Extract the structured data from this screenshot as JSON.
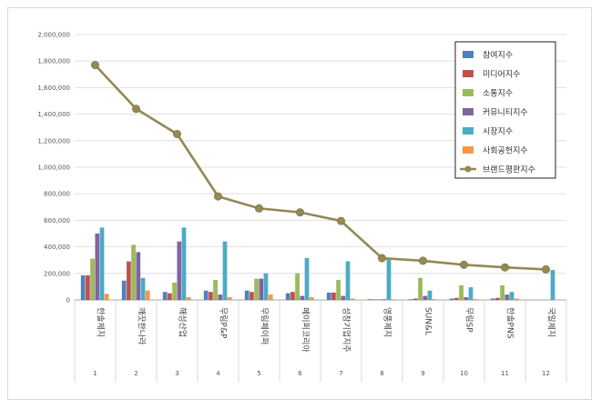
{
  "chart_data": {
    "type": "bar",
    "title": "",
    "xlabel": "",
    "ylabel": "",
    "ylim": [
      0,
      2000000
    ],
    "yticks": [
      0,
      200000,
      400000,
      600000,
      800000,
      1000000,
      1200000,
      1400000,
      1600000,
      1800000,
      2000000
    ],
    "ytick_labels": [
      "0",
      "200,000",
      "400,000",
      "600,000",
      "800,000",
      "1,000,000",
      "1,200,000",
      "1,400,000",
      "1,600,000",
      "1,800,000",
      "2,000,000"
    ],
    "grid": true,
    "legend_position": "top-right",
    "categories": [
      "한솔제지",
      "깨끗한나라",
      "해성산업",
      "무림P&P",
      "무림페이퍼",
      "페이퍼코리아",
      "성창기업지주",
      "영풍제지",
      "SUN&L",
      "무림SP",
      "한솔PNS",
      "국일제지"
    ],
    "category_numbers": [
      "1",
      "2",
      "3",
      "4",
      "5",
      "6",
      "7",
      "8",
      "9",
      "10",
      "11",
      "12"
    ],
    "series": [
      {
        "name": "참여지수",
        "type": "bar",
        "color": "#4f81bd",
        "values": [
          185000,
          145000,
          60000,
          70000,
          70000,
          50000,
          55000,
          5000,
          5000,
          10000,
          10000,
          0
        ]
      },
      {
        "name": "미디어지수",
        "type": "bar",
        "color": "#c0504d",
        "values": [
          185000,
          290000,
          50000,
          60000,
          60000,
          60000,
          55000,
          3000,
          10000,
          15000,
          15000,
          0
        ]
      },
      {
        "name": "소통지수",
        "type": "bar",
        "color": "#9bbb59",
        "values": [
          310000,
          415000,
          130000,
          150000,
          160000,
          200000,
          150000,
          5000,
          165000,
          110000,
          110000,
          0
        ]
      },
      {
        "name": "커뮤니티지수",
        "type": "bar",
        "color": "#8064a2",
        "values": [
          500000,
          360000,
          440000,
          40000,
          160000,
          30000,
          30000,
          5000,
          30000,
          20000,
          40000,
          0
        ]
      },
      {
        "name": "시장지수",
        "type": "bar",
        "color": "#4bacc6",
        "values": [
          545000,
          165000,
          545000,
          440000,
          200000,
          315000,
          290000,
          305000,
          70000,
          95000,
          60000,
          225000
        ]
      },
      {
        "name": "사회공헌지수",
        "type": "bar",
        "color": "#f79646",
        "values": [
          45000,
          70000,
          20000,
          20000,
          40000,
          20000,
          10000,
          3000,
          5000,
          5000,
          10000,
          0
        ]
      },
      {
        "name": "브랜드평판지수",
        "type": "line",
        "color": "#938953",
        "values": [
          1770000,
          1440000,
          1250000,
          780000,
          690000,
          660000,
          595000,
          315000,
          295000,
          265000,
          245000,
          230000
        ]
      }
    ]
  }
}
